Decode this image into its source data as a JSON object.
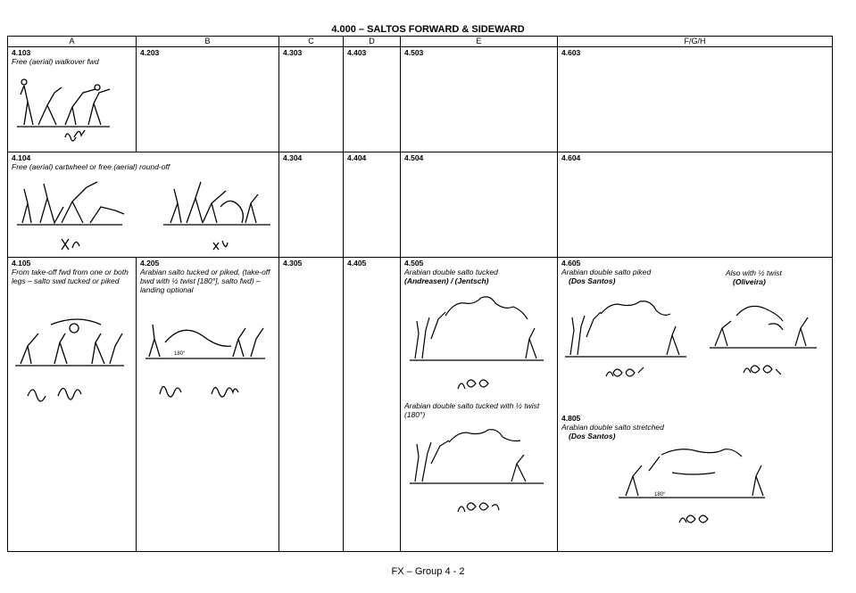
{
  "title": "4.000 – SALTOS FORWARD & SIDEWARD",
  "footer": "FX – Group 4 - 2",
  "columns": [
    "A",
    "B",
    "C",
    "D",
    "E",
    "F/G/H"
  ],
  "row1": {
    "a_code": "4.103",
    "a_desc": "Free (aerial) walkover fwd",
    "b_code": "4.203",
    "c_code": "4.303",
    "d_code": "4.403",
    "e_code": "4.503",
    "f_code": "4.603"
  },
  "row2": {
    "a_code": "4.104",
    "a_desc": "Free (aerial) cartwheel or free (aerial) round-off",
    "c_code": "4.304",
    "d_code": "4.404",
    "e_code": "4.504",
    "f_code": "4.604"
  },
  "row3": {
    "a_code": "4.105",
    "a_desc": "From take-off fwd from one or both legs – salto swd tucked or piked",
    "b_code": "4.205",
    "b_desc": "Arabian salto tucked or piked, (take-off bwd with ½ twist [180°], salto fwd) – landing optional",
    "b_angle": "180°",
    "c_code": "4.305",
    "d_code": "4.405",
    "e_code": "4.505",
    "e_desc": "Arabian double salto tucked",
    "e_name": "(Andreasen) / (Jentsch)",
    "e2_desc": "Arabian double salto tucked with ½ twist (180°)",
    "f_code": "4.605",
    "f_desc": "Arabian double salto piked",
    "f_name": "(Dos Santos)",
    "f_alt_desc": "Also with ½ twist",
    "f_alt_name": "(Oliveira)",
    "f2_code": "4.805",
    "f2_desc": "Arabian double salto stretched",
    "f2_name": "(Dos Santos)",
    "f2_angle": "180°"
  },
  "icons": [
    "gymnast-figure-sequence",
    "symbol-notation"
  ]
}
